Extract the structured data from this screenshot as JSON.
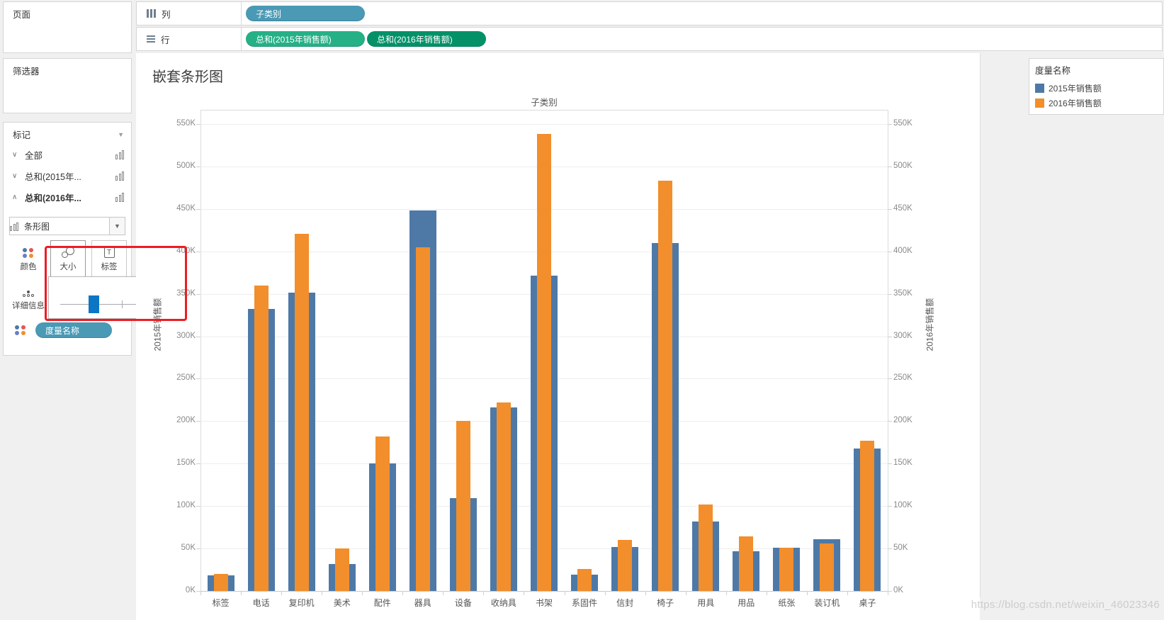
{
  "shelves": {
    "columns": {
      "label": "列",
      "pills": [
        {
          "text": "子类别",
          "color": "#4a99b5"
        }
      ]
    },
    "rows": {
      "label": "行",
      "pills": [
        {
          "text": "总和(2015年销售额)",
          "color": "#25b086"
        },
        {
          "text": "总和(2016年销售额)",
          "color": "#049168"
        }
      ]
    }
  },
  "panels": {
    "pages_title": "页面",
    "filters_title": "筛选器",
    "marks": {
      "title": "标记",
      "items": [
        {
          "chevron": "∨",
          "label": "全部",
          "bold": false
        },
        {
          "chevron": "∨",
          "label": "总和(2015年...",
          "bold": false
        },
        {
          "chevron": "∧",
          "label": "总和(2016年...",
          "bold": true
        }
      ],
      "mark_type": "条形图",
      "color_btn": "颜色",
      "size_btn": "大小",
      "label_btn": "标签",
      "detail_btn": "详细信息",
      "pill": "度量名称",
      "color_dots": [
        "#4e79a7",
        "#e15759",
        "#6b7fc4",
        "#f28e2b"
      ]
    }
  },
  "sheet": {
    "title": "嵌套条形图",
    "column_header": "子类别",
    "left_axis_title": "2015年销售额",
    "right_axis_title": "2016年销售额"
  },
  "legend": {
    "title": "度量名称",
    "entries": [
      {
        "label": "2015年销售额",
        "color": "#4e79a7"
      },
      {
        "label": "2016年销售额",
        "color": "#f28e2b"
      }
    ]
  },
  "watermark": "https://blog.csdn.net/weixin_46023346",
  "chart_data": {
    "type": "bar",
    "title": "子类别",
    "categories": [
      "标签",
      "电话",
      "复印机",
      "美术",
      "配件",
      "器具",
      "设备",
      "收纳具",
      "书架",
      "系固件",
      "信封",
      "椅子",
      "用具",
      "用品",
      "纸张",
      "装订机",
      "桌子"
    ],
    "series": [
      {
        "name": "2015年销售额",
        "color": "#4e79a7",
        "values": [
          18,
          332,
          351,
          32,
          150,
          448,
          109,
          216,
          371,
          19,
          52,
          410,
          82,
          47,
          51,
          61,
          168
        ]
      },
      {
        "name": "2016年销售额",
        "color": "#f28e2b",
        "values": [
          20,
          360,
          421,
          50,
          182,
          405,
          200,
          222,
          538,
          26,
          60,
          483,
          102,
          64,
          51,
          56,
          177
        ]
      }
    ],
    "value_unit": "K",
    "ylim": [
      0,
      567
    ],
    "ytick_step": 50,
    "ytick_max": 550,
    "ylabel_left": "2015年销售额",
    "ylabel_right": "2016年销售额",
    "grid": true,
    "legend_position": "right"
  }
}
